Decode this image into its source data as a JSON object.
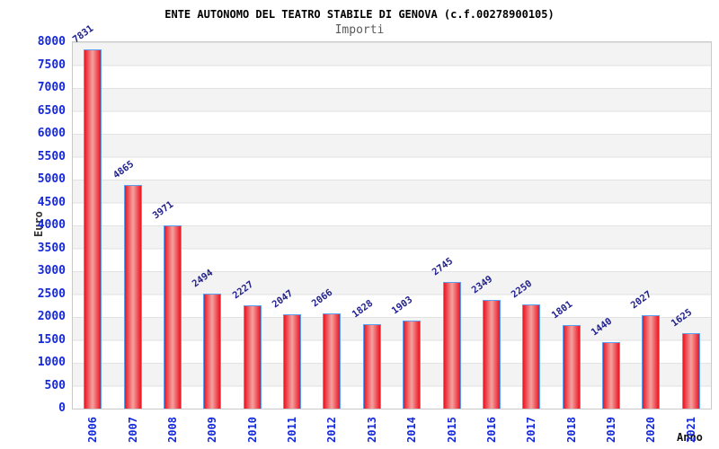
{
  "chart_data": {
    "type": "bar",
    "title": "ENTE AUTONOMO DEL TEATRO STABILE DI GENOVA (c.f.00278900105)",
    "subtitle": "Importi",
    "xlabel": "Anno",
    "ylabel": "Euro",
    "categories": [
      "2006",
      "2007",
      "2008",
      "2009",
      "2010",
      "2011",
      "2012",
      "2013",
      "2014",
      "2015",
      "2016",
      "2017",
      "2018",
      "2019",
      "2020",
      "2021"
    ],
    "values": [
      7831,
      4865,
      3971,
      2494,
      2227,
      2047,
      2066,
      1828,
      1903,
      2745,
      2349,
      2250,
      1801,
      1440,
      2027,
      1625
    ],
    "ylim": [
      0,
      8000
    ],
    "y_tick_step": 500,
    "grid": "horizontal-bands",
    "legend": "none",
    "colors": {
      "bar_edge": "#e81623",
      "bar_center": "#f5a2a0",
      "bar_border": "#5b9ff0",
      "axis_text": "#1428dc",
      "value_label": "#1f1f8e",
      "band_gray": "#f3f3f3",
      "band_white": "#ffffff",
      "grid_line": "#e2e2e2",
      "plot_border": "#c9c9c9",
      "title_text": "#000000",
      "subtitle_text": "#5a5a5a"
    }
  }
}
